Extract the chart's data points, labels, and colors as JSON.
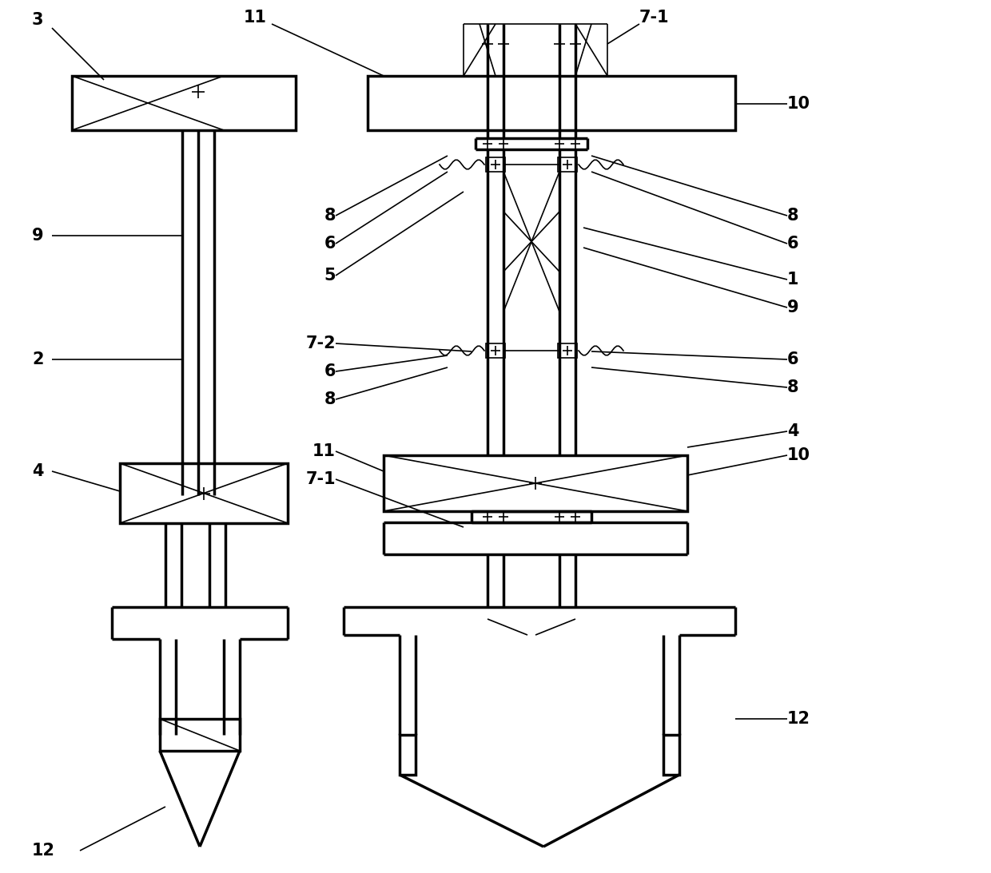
{
  "bg_color": "#ffffff",
  "lw": 1.8,
  "lw_thick": 2.5,
  "lw_thin": 1.2,
  "figsize": [
    12.4,
    10.93
  ],
  "dpi": 100
}
